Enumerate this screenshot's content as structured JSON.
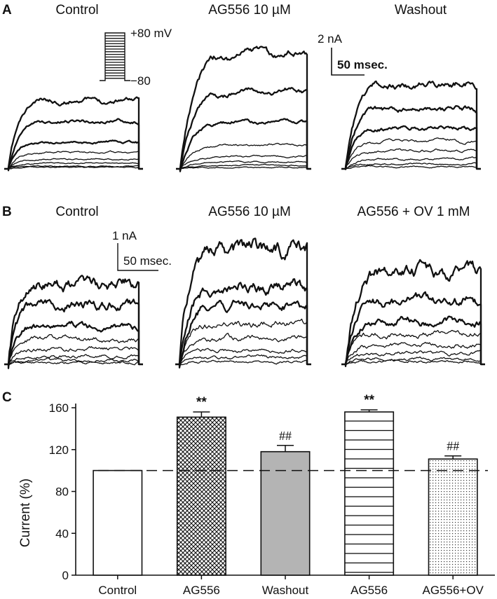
{
  "panel_a": {
    "label": "A",
    "conditions": [
      "Control",
      "AG556 10 µM",
      "Washout"
    ],
    "protocol": {
      "top_label": "+80 mV",
      "bottom_label": "−80"
    },
    "scale_bar": {
      "current": "2 nA",
      "time": "50 msec."
    }
  },
  "panel_b": {
    "label": "B",
    "conditions": [
      "Control",
      "AG556 10 µM",
      "AG556 + OV 1 mM"
    ],
    "scale_bar": {
      "current": "1 nA",
      "time": "50 msec."
    }
  },
  "chart_data": {
    "panel_label": "C",
    "type": "bar",
    "categories": [
      "Control",
      "AG556",
      "Washout",
      "AG556",
      "AG556+OV"
    ],
    "values": [
      100,
      151,
      118,
      156,
      111
    ],
    "errors": [
      0.5,
      5,
      6,
      2,
      3
    ],
    "significance": [
      "",
      "**",
      "##",
      "**",
      "##"
    ],
    "patterns": [
      "none",
      "crosshatch",
      "solid-gray",
      "horizontal-lines",
      "dots"
    ],
    "ylabel": "Current (%)",
    "xlabel": "",
    "ylim": [
      0,
      160
    ],
    "yticks": [
      0,
      40,
      80,
      120,
      160
    ],
    "reference_line": 100,
    "grid": false,
    "colors": {
      "bar_fill": "#ffffff",
      "washout_fill": "#b4b4b4",
      "stroke": "#111111"
    }
  }
}
